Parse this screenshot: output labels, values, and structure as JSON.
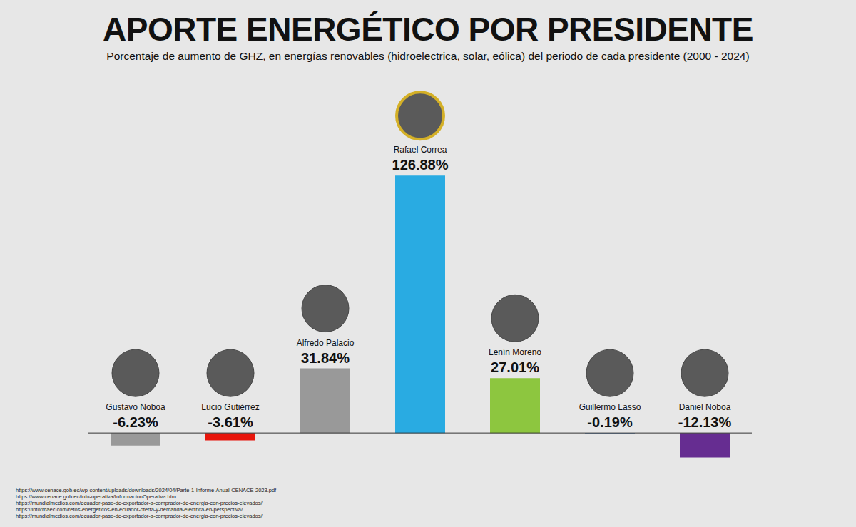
{
  "chart_data": {
    "type": "bar",
    "title": "APORTE ENERGÉTICO POR PRESIDENTE",
    "subtitle": "Porcentaje de aumento de GHZ, en energías renovables (hidroelectrica, solar, eólica) del periodo de cada presidente (2000 - 2024)",
    "categories": [
      "Gustavo Noboa",
      "Lucio Gutiérrez",
      "Alfredo Palacio",
      "Rafael Correa",
      "Lenín Moreno",
      "Guillermo Lasso",
      "Daniel Noboa"
    ],
    "values": [
      -6.23,
      -3.61,
      31.84,
      126.88,
      27.01,
      -0.19,
      -12.13
    ],
    "value_labels": [
      "-6.23%",
      "-3.61%",
      "31.84%",
      "126.88%",
      "27.01%",
      "-0.19%",
      "-12.13%"
    ],
    "colors": [
      "#999999",
      "#e8150c",
      "#999999",
      "#29abe2",
      "#8dc63f",
      "#1f5fa8",
      "#662d91"
    ],
    "ylim": [
      -20,
      140
    ],
    "yticks": [
      0
    ],
    "tick_labels": false,
    "data_labels": true,
    "sources": [
      "https://www.cenace.gob.ec/wp-content/uploads/downloads/2024/04/Parte-1-Informe-Anual-CENACE-2023.pdf",
      "https://www.cenace.gob.ec/info-operativa/InformacionOperativa.htm",
      "https://mundialmedios.com/ecuador-paso-de-exportador-a-comprador-de-energia-con-precios-elevados/",
      "https://informaec.com/retos-energeticos-en-ecuador-oferta-y-demanda-electrica-en-perspectiva/",
      "https://mundialmedios.com/ecuador-paso-de-exportador-a-comprador-de-energia-con-precios-elevados/"
    ]
  }
}
